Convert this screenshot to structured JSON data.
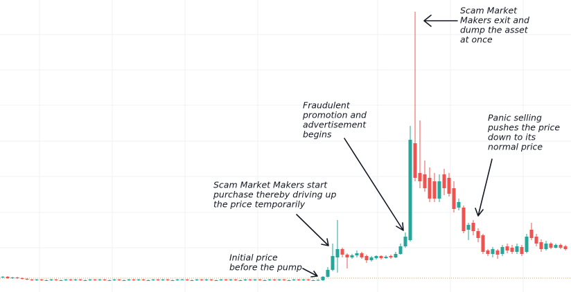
{
  "chart_data": {
    "type": "candlestick",
    "categories": [
      null,
      null,
      null,
      null,
      null,
      null,
      null,
      null,
      null,
      null,
      null,
      null,
      null,
      null,
      null,
      null,
      null,
      null,
      null,
      null,
      null,
      null,
      null,
      null,
      null,
      null,
      null,
      null,
      null,
      null,
      null,
      null,
      null,
      null,
      null,
      null,
      null,
      null,
      null,
      null,
      null,
      null,
      null,
      null,
      null,
      null,
      null,
      null,
      null,
      null,
      null,
      null,
      null,
      null,
      null,
      null,
      null,
      null,
      null,
      null,
      null,
      null,
      null,
      null,
      null,
      null,
      null,
      null,
      null,
      null,
      null,
      null,
      null,
      null,
      null,
      null,
      null,
      null,
      null,
      null,
      null,
      null,
      null,
      null,
      null,
      null,
      null,
      null,
      null,
      null,
      null,
      null,
      null,
      null,
      null,
      null,
      null,
      null,
      null,
      null,
      null,
      null,
      null,
      null,
      null,
      null,
      null,
      null,
      null,
      null,
      null,
      null,
      null,
      null,
      null,
      null,
      null
    ],
    "open": [
      21,
      22,
      20,
      21,
      20,
      19,
      18,
      17,
      18,
      17,
      17,
      18,
      17,
      17,
      18,
      17,
      18,
      17,
      17,
      18,
      17,
      18,
      17,
      17,
      18,
      17,
      17,
      18,
      17,
      18,
      17,
      17,
      18,
      17,
      18,
      17,
      17,
      18,
      18,
      17,
      17,
      18,
      17,
      18,
      17,
      17,
      18,
      17,
      18,
      17,
      17,
      18,
      17,
      18,
      17,
      17,
      18,
      17,
      18,
      17,
      17,
      18,
      17,
      18,
      17,
      17,
      17,
      22,
      32,
      50,
      62,
      54,
      50,
      53,
      56,
      52,
      46,
      49,
      52,
      49,
      52,
      50,
      55,
      66,
      75,
      215,
      172,
      170,
      165,
      160,
      135,
      170,
      165,
      150,
      122,
      122,
      90,
      100,
      88,
      82,
      60,
      55,
      60,
      55,
      66,
      64,
      58,
      65,
      58,
      90,
      80,
      72,
      62,
      70,
      64,
      68,
      66
    ],
    "high": [
      23,
      23,
      22,
      22,
      21,
      20,
      19,
      19,
      19,
      18,
      19,
      19,
      18,
      19,
      19,
      19,
      19,
      18,
      19,
      19,
      19,
      19,
      18,
      19,
      19,
      18,
      19,
      19,
      19,
      19,
      18,
      19,
      19,
      19,
      19,
      18,
      19,
      19,
      19,
      18,
      19,
      19,
      19,
      19,
      18,
      19,
      19,
      19,
      19,
      18,
      19,
      19,
      19,
      19,
      18,
      19,
      19,
      19,
      19,
      18,
      19,
      19,
      19,
      19,
      18,
      18.5,
      23,
      36,
      70,
      104,
      64,
      56,
      55,
      60,
      58,
      54,
      52,
      53,
      53,
      53,
      54,
      58,
      70,
      86,
      240,
      405,
      248,
      190,
      180,
      172,
      170,
      178,
      172,
      160,
      135,
      125,
      100,
      104,
      92,
      84,
      62,
      65,
      62,
      68,
      70,
      68,
      70,
      68,
      84,
      100,
      84,
      76,
      74,
      72,
      70,
      70,
      68
    ],
    "low": [
      20,
      19,
      19,
      19,
      18,
      17,
      16,
      16,
      16,
      16,
      16,
      16,
      16,
      16,
      16,
      16,
      16,
      16,
      16,
      16,
      16,
      16,
      16,
      16,
      16,
      16,
      16,
      16,
      16,
      16,
      16,
      16,
      16,
      16,
      16,
      16,
      16,
      17,
      16,
      16,
      16,
      16,
      16,
      16,
      16,
      16,
      16,
      16,
      16,
      16,
      16,
      16,
      16,
      16,
      16,
      16,
      16,
      16,
      16,
      16,
      16,
      16,
      16,
      16,
      16,
      16,
      16,
      21,
      30,
      28,
      50,
      34,
      48,
      50,
      48,
      42,
      44,
      47,
      47,
      48,
      48,
      49,
      54,
      64,
      73,
      160,
      150,
      145,
      130,
      130,
      130,
      140,
      138,
      115,
      118,
      85,
      75,
      82,
      72,
      55,
      52,
      50,
      48,
      52,
      56,
      55,
      55,
      52,
      56,
      75,
      66,
      58,
      60,
      62,
      63,
      62,
      60
    ],
    "close": [
      22,
      20,
      21,
      20,
      19,
      18,
      17,
      18,
      17,
      17,
      18,
      17,
      17,
      18,
      17,
      18,
      17,
      17,
      18,
      17,
      18,
      17,
      17,
      18,
      17,
      17,
      18,
      17,
      18,
      17,
      17,
      18,
      17,
      18,
      17,
      17,
      18,
      18,
      17,
      17,
      18,
      17,
      18,
      17,
      17,
      18,
      17,
      18,
      17,
      17,
      18,
      17,
      18,
      17,
      17,
      18,
      17,
      18,
      17,
      17,
      18,
      17,
      18,
      17,
      17,
      17.5,
      22,
      32,
      52,
      62,
      54,
      50,
      53,
      56,
      50,
      46,
      50,
      52,
      49,
      51,
      50,
      55,
      66,
      80,
      220,
      165,
      160,
      150,
      135,
      135,
      160,
      150,
      142,
      120,
      130,
      88,
      97,
      88,
      78,
      58,
      55,
      62,
      54,
      65,
      60,
      58,
      66,
      55,
      80,
      78,
      70,
      62,
      70,
      64,
      68,
      64,
      62
    ],
    "up_color": "#26a69a",
    "down_color": "#ef5350",
    "ylim": [
      0,
      422
    ],
    "reference_line": {
      "value": 20,
      "color": "#f0a34a"
    },
    "annotations": [
      {
        "lines": [
          "Scam Market",
          "Makers exit and",
          "dump the asset",
          "at once"
        ]
      },
      {
        "lines": [
          "Fraudulent",
          "promotion and",
          "advertisement",
          "begins"
        ]
      },
      {
        "lines": [
          "Panic selling",
          "pushes the price",
          "down to its",
          "normal price"
        ]
      },
      {
        "lines": [
          "Scam Market Makers start",
          "purchase thereby driving up",
          "the price temporarily"
        ]
      },
      {
        "lines": [
          "Initial price",
          "before the pump"
        ]
      }
    ]
  }
}
